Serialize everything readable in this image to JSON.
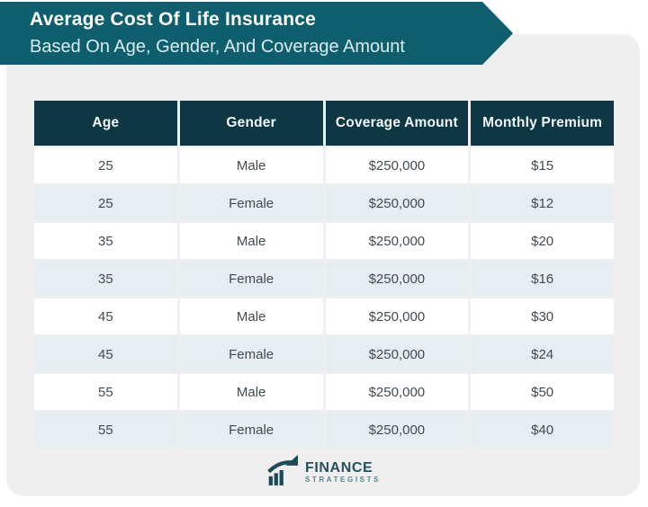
{
  "chart_data": {
    "type": "table",
    "title": "Average Cost Of Life Insurance",
    "subtitle": "Based On Age, Gender, And Coverage Amount",
    "columns": [
      "Age",
      "Gender",
      "Coverage Amount",
      "Monthly Premium"
    ],
    "rows": [
      [
        "25",
        "Male",
        "$250,000",
        "$15"
      ],
      [
        "25",
        "Female",
        "$250,000",
        "$12"
      ],
      [
        "35",
        "Male",
        "$250,000",
        "$20"
      ],
      [
        "35",
        "Female",
        "$250,000",
        "$16"
      ],
      [
        "45",
        "Male",
        "$250,000",
        "$30"
      ],
      [
        "45",
        "Female",
        "$250,000",
        "$24"
      ],
      [
        "55",
        "Male",
        "$250,000",
        "$50"
      ],
      [
        "55",
        "Female",
        "$250,000",
        "$40"
      ]
    ],
    "layout_hints": {
      "alternating_row_shading": true,
      "header_style": "dark-teal"
    }
  },
  "logo": {
    "name": "FINANCE",
    "subtext": "STRATEGISTS",
    "icon": "bar-chart-growth-arrow-icon"
  },
  "colors": {
    "banner_teal": "#0f5e6e",
    "table_header_bg": "#0d3843",
    "alt_row_bg": "#e7eef1",
    "card_bg": "#efeff0",
    "cell_text": "#414b50",
    "logo_teal": "#24505c"
  }
}
